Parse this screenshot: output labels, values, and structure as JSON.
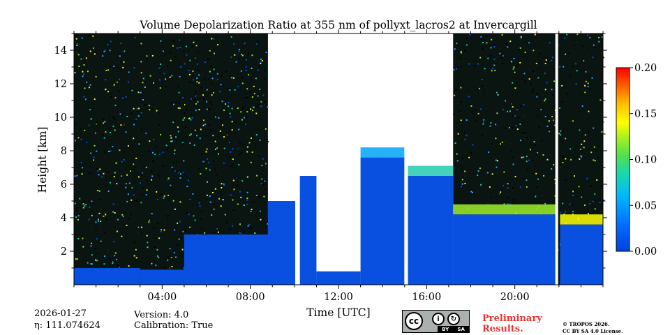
{
  "chart_data": {
    "type": "heatmap",
    "title": "Volume Depolarization Ratio at 355 nm of pollyxt_lacros2 at Invercargill",
    "xlabel": "Time [UTC]",
    "ylabel": "Height [km]",
    "xlim": [
      0,
      24
    ],
    "ylim": [
      0,
      15
    ],
    "x_ticks": [
      {
        "value": 4,
        "label": "04:00"
      },
      {
        "value": 8,
        "label": "08:00"
      },
      {
        "value": 12,
        "label": "12:00"
      },
      {
        "value": 16,
        "label": "16:00"
      },
      {
        "value": 20,
        "label": "20:00"
      }
    ],
    "y_ticks": [
      {
        "value": 2,
        "label": "2"
      },
      {
        "value": 4,
        "label": "4"
      },
      {
        "value": 6,
        "label": "6"
      },
      {
        "value": 8,
        "label": "8"
      },
      {
        "value": 10,
        "label": "10"
      },
      {
        "value": 12,
        "label": "12"
      },
      {
        "value": 14,
        "label": "14"
      }
    ],
    "colorbar": {
      "range": [
        0.0,
        0.2
      ],
      "colormap": "jet",
      "ticks": [
        {
          "value": 0.0,
          "label": "0.00"
        },
        {
          "value": 0.05,
          "label": "0.05"
        },
        {
          "value": 0.1,
          "label": "0.10"
        },
        {
          "value": 0.15,
          "label": "0.15"
        },
        {
          "value": 0.2,
          "label": "0.20"
        }
      ]
    },
    "data_gaps_utc": [
      10.1,
      15.05,
      21.9
    ],
    "segments": [
      {
        "start": 0.0,
        "end": 3.0,
        "signal_top_km": 1.0,
        "value": 0.01
      },
      {
        "start": 3.0,
        "end": 5.0,
        "signal_top_km": 0.9,
        "value": 0.01
      },
      {
        "start": 5.0,
        "end": 8.8,
        "signal_top_km": 3.0,
        "value": 0.01
      },
      {
        "start": 8.8,
        "end": 10.1,
        "signal_top_km": 5.0,
        "value": 0.02
      },
      {
        "start": 10.25,
        "end": 11.0,
        "signal_top_km": 6.5,
        "value": 0.02
      },
      {
        "start": 11.0,
        "end": 13.0,
        "signal_top_km": 0.8,
        "value": 0.02
      },
      {
        "start": 13.0,
        "end": 15.0,
        "signal_top_km": 7.6,
        "value": 0.05
      },
      {
        "start": 15.15,
        "end": 17.2,
        "signal_top_km": 6.5,
        "value": 0.08
      },
      {
        "start": 17.2,
        "end": 21.9,
        "signal_top_km": 4.2,
        "value": 0.12
      },
      {
        "start": 22.05,
        "end": 24.0,
        "signal_top_km": 3.6,
        "value": 0.14
      }
    ]
  },
  "footer": {
    "date": "2026-01-27",
    "eta": "111.074624",
    "eta_label": "η:",
    "version": "Version: 4.0",
    "calibration": "Calibration: True",
    "preliminary_line1": "Preliminary",
    "preliminary_line2": "Results.",
    "copyright_line1": "© TROPOS 2026.",
    "copyright_line2": "CC BY SA 4.0 License.",
    "cc_logo": "cc",
    "cc_by": "BY",
    "cc_sa": "SA"
  }
}
